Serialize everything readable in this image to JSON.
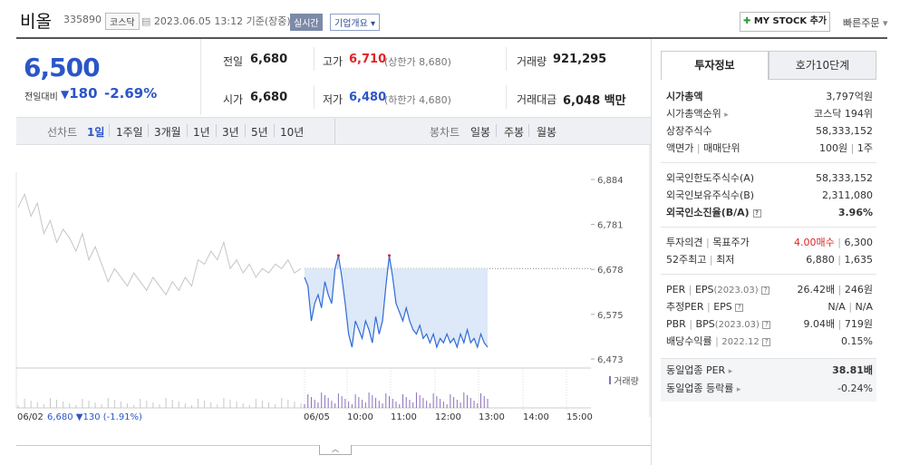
{
  "header": {
    "name": "비올",
    "code": "335890",
    "market": "코스닥",
    "datetime": "2023.06.05 13:12",
    "basis": "기준(장중)",
    "realtime": "실시간",
    "corp_info": "기업개요",
    "mystock": "MY STOCK 추가",
    "quick_order": "빠른주문"
  },
  "price": {
    "current": "6,500",
    "cmp_label": "전일대비",
    "change": "180",
    "change_pct": "-2.69%"
  },
  "stats": {
    "prev_label": "전일",
    "prev": "6,680",
    "high_label": "고가",
    "high": "6,710",
    "upper_limit": "(상한가 8,680)",
    "volume_label": "거래량",
    "volume": "921,295",
    "open_label": "시가",
    "open": "6,680",
    "low_label": "저가",
    "low": "6,480",
    "lower_limit": "(하한가 4,680)",
    "amount_label": "거래대금",
    "amount": "6,048",
    "amount_unit": "백만"
  },
  "toolbar": {
    "line_label": "선차트",
    "periods": [
      "1일",
      "1주일",
      "3개월",
      "1년",
      "3년",
      "5년",
      "10년"
    ],
    "candle_label": "봉차트",
    "candles": [
      "일봉",
      "주봉",
      "월봉"
    ]
  },
  "chart_data": {
    "type": "line",
    "y_ticks": [
      6884,
      6781,
      6678,
      6575,
      6473
    ],
    "ylim": [
      6473,
      6884
    ],
    "prev_close": 6680,
    "prev_day_label": "06/02",
    "prev_day_summary": "6,680 ▼130 (-1.91%)",
    "day_label": "06/05",
    "x_ticks": [
      "10:00",
      "11:00",
      "12:00",
      "13:00",
      "14:00",
      "15:00"
    ],
    "volume_label": "거래량",
    "series_prev": [
      6820,
      6850,
      6800,
      6830,
      6760,
      6790,
      6740,
      6770,
      6750,
      6720,
      6760,
      6700,
      6730,
      6690,
      6650,
      6680,
      6660,
      6640,
      6670,
      6650,
      6630,
      6660,
      6640,
      6620,
      6650,
      6630,
      6660,
      6640,
      6700,
      6690,
      6720,
      6700,
      6740,
      6680,
      6700,
      6670,
      6690,
      6660,
      6680,
      6670,
      6690,
      6680,
      6700,
      6670,
      6680
    ],
    "series_today": [
      6660,
      6640,
      6560,
      6600,
      6620,
      6590,
      6650,
      6620,
      6600,
      6680,
      6710,
      6660,
      6600,
      6530,
      6500,
      6560,
      6540,
      6520,
      6560,
      6540,
      6510,
      6570,
      6530,
      6560,
      6640,
      6710,
      6660,
      6600,
      6580,
      6560,
      6590,
      6560,
      6540,
      6530,
      6550,
      6520,
      6530,
      6510,
      6530,
      6500,
      6520,
      6510,
      6530,
      6510,
      6520,
      6500,
      6530,
      6510,
      6540,
      6510,
      6520,
      6500,
      6530,
      6510,
      6500
    ]
  },
  "right": {
    "tab_active": "투자정보",
    "tab_other": "호가10단계",
    "market_cap_label": "시가총액",
    "market_cap": "3,797억원",
    "cap_rank_label": "시가총액순위",
    "cap_rank": "코스닥 194위",
    "shares_label": "상장주식수",
    "shares": "58,333,152",
    "par_label": "액면가",
    "unit_label": "매매단위",
    "par": "100원",
    "unit": "1주",
    "foreign_limit_label": "외국인한도주식수(A)",
    "foreign_limit": "58,333,152",
    "foreign_hold_label": "외국인보유주식수(B)",
    "foreign_hold": "2,311,080",
    "foreign_rate_label": "외국인소진율(B/A)",
    "foreign_rate": "3.96%",
    "opinion_label": "투자의견",
    "target_label": "목표주가",
    "opinion": "4.00매수",
    "target": "6,300",
    "w52_high_label": "52주최고",
    "w52_low_label": "최저",
    "w52_high": "6,880",
    "w52_low": "1,635",
    "per_label": "PER",
    "eps_label": "EPS",
    "eps_year": "(2023.03)",
    "per": "26.42배",
    "eps": "246원",
    "est_per_label": "추정PER",
    "est_eps_label": "EPS",
    "est_per": "N/A",
    "est_eps": "N/A",
    "pbr_label": "PBR",
    "bps_label": "BPS",
    "bps_year": "(2023.03)",
    "pbr": "9.04배",
    "bps": "719원",
    "div_label": "배당수익률",
    "div_year": "2022.12",
    "div": "0.15%",
    "sector_per_label": "동일업종 PER",
    "sector_per": "38.81배",
    "sector_chg_label": "동일업종 등락률",
    "sector_chg": "-0.24%"
  }
}
